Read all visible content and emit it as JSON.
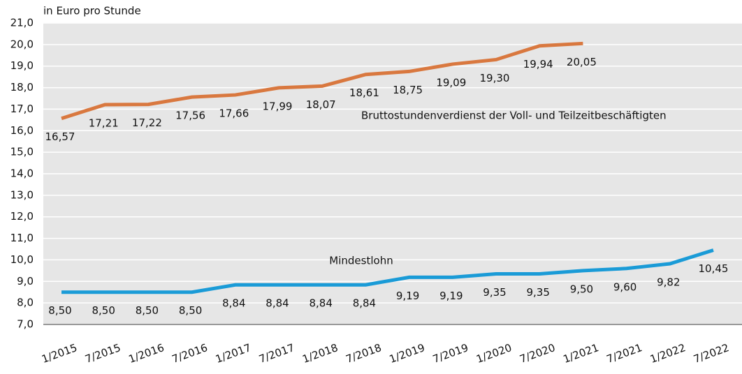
{
  "chart_data": {
    "type": "line",
    "y_label": "in Euro pro Stunde",
    "categories": [
      "1/2015",
      "7/2015",
      "1/2016",
      "7/2016",
      "1/2017",
      "7/2017",
      "1/2018",
      "7/2018",
      "1/2019",
      "7/2019",
      "1/2020",
      "7/2020",
      "1/2021",
      "7/2021",
      "1/2022",
      "7/2022"
    ],
    "series": [
      {
        "name": "Bruttostundenverdienst der Voll- und Teilzeitbeschäftigten",
        "color": "#d9783f",
        "values": [
          16.57,
          17.21,
          17.22,
          17.56,
          17.66,
          17.99,
          18.07,
          18.61,
          18.75,
          19.09,
          19.3,
          19.94,
          20.05,
          null,
          null,
          null
        ],
        "value_labels": [
          "16,57",
          "17,21",
          "17,22",
          "17,56",
          "17,66",
          "17,99",
          "18,07",
          "18,61",
          "18,75",
          "19,09",
          "19,30",
          "19,94",
          "20,05",
          null,
          null,
          null
        ]
      },
      {
        "name": "Mindestlohn",
        "color": "#1a9bd7",
        "values": [
          8.5,
          8.5,
          8.5,
          8.5,
          8.84,
          8.84,
          8.84,
          8.84,
          9.19,
          9.19,
          9.35,
          9.35,
          9.5,
          9.6,
          9.82,
          10.45
        ],
        "value_labels": [
          "8,50",
          "8,50",
          "8,50",
          "8,50",
          "8,84",
          "8,84",
          "8,84",
          "8,84",
          "9,19",
          "9,19",
          "9,35",
          "9,35",
          "9,50",
          "9,60",
          "9,82",
          "10,45"
        ]
      }
    ],
    "ylim": [
      7,
      21
    ],
    "yticks": [
      {
        "value": 7,
        "label": "7,0"
      },
      {
        "value": 8,
        "label": "8,0"
      },
      {
        "value": 9,
        "label": "9,0"
      },
      {
        "value": 10,
        "label": "10,0"
      },
      {
        "value": 11,
        "label": "11,0"
      },
      {
        "value": 12,
        "label": "12,0"
      },
      {
        "value": 13,
        "label": "13,0"
      },
      {
        "value": 14,
        "label": "14,0"
      },
      {
        "value": 15,
        "label": "15,0"
      },
      {
        "value": 16,
        "label": "16,0"
      },
      {
        "value": 17,
        "label": "17,0"
      },
      {
        "value": 18,
        "label": "18,0"
      },
      {
        "value": 19,
        "label": "19,0"
      },
      {
        "value": 20,
        "label": "20,0"
      },
      {
        "value": 21,
        "label": "21,0"
      }
    ],
    "grid": true
  }
}
